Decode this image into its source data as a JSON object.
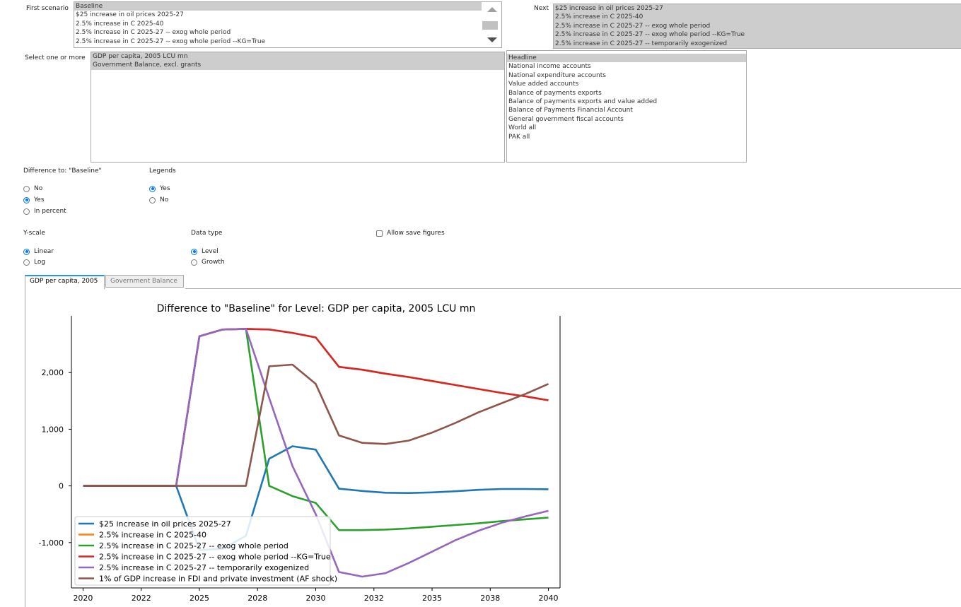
{
  "first_scenario": {
    "label": "First scenario",
    "options": [
      "Baseline",
      "$25 increase in oil prices 2025-27",
      "2.5% increase in C 2025-40",
      "2.5% increase in C 2025-27 -- exog whole period",
      "2.5% increase in C 2025-27 -- exog whole period --KG=True"
    ],
    "selected": "Baseline"
  },
  "next": {
    "label": "Next",
    "options": [
      "$25 increase in oil prices 2025-27",
      "2.5% increase in C 2025-40",
      "2.5% increase in C 2025-27 -- exog whole period",
      "2.5% increase in C 2025-27 -- exog whole period --KG=True",
      "2.5% increase in C 2025-27 -- temporarily exogenized"
    ]
  },
  "variables": {
    "label": "Select one or more",
    "options": [
      "GDP per capita, 2005 LCU mn",
      "Government Balance, excl. grants"
    ]
  },
  "groups": {
    "options": [
      "Headline",
      "National income accounts",
      "National expenditure accounts",
      "Value added accounts",
      "Balance of payments exports",
      "Balance of payments exports and value added",
      "Balance of Payments Financial Account",
      "General government fiscal accounts",
      "World all",
      "PAK all"
    ],
    "selected": "Headline"
  },
  "difference": {
    "label": "Difference to: \"Baseline\"",
    "options": [
      "No",
      "Yes",
      "In percent"
    ],
    "selected": "Yes"
  },
  "legends": {
    "label": "Legends",
    "options": [
      "Yes",
      "No"
    ],
    "selected": "Yes"
  },
  "yscale": {
    "label": "Y-scale",
    "options": [
      "Linear",
      "Log"
    ],
    "selected": "Linear"
  },
  "datatype": {
    "label": "Data type",
    "options": [
      "Level",
      "Growth"
    ],
    "selected": "Level"
  },
  "allow_save": {
    "label": "Allow save figures",
    "checked": false
  },
  "tabs": [
    "GDP per capita, 2005 LCU mn",
    "Government Balance"
  ],
  "active_tab_text": "GDP per capita, 2005",
  "colors": {
    "accent": "#0075ff",
    "tab_accent": "#2196f3",
    "selected_bg": "#cdcdcd"
  },
  "chart_data": {
    "type": "line",
    "title": "Difference to \"Baseline\" for Level: GDP per capita, 2005 LCU mn",
    "xlabel": "",
    "ylabel": "",
    "x_tick_labels": [
      "2020",
      "2022",
      "2025",
      "2028",
      "2030",
      "2032",
      "2035",
      "2038",
      "2040"
    ],
    "y_tick_labels": [
      "-1,000",
      "0",
      "1,000",
      "2,000"
    ],
    "y_ticks": [
      -1000,
      0,
      1000,
      2000
    ],
    "xlim": [
      2019.5,
      2040.5
    ],
    "ylim": [
      -1800,
      3000
    ],
    "grid": false,
    "legend_position": "lower-left",
    "x": [
      2020,
      2021,
      2022,
      2023,
      2024,
      2025,
      2026,
      2027,
      2028,
      2029,
      2030,
      2031,
      2032,
      2033,
      2034,
      2035,
      2036,
      2037,
      2038,
      2039,
      2040
    ],
    "series": [
      {
        "name": "$25 increase in oil prices 2025-27",
        "color": "#1f77b4",
        "values": [
          0,
          0,
          0,
          0,
          0,
          -1130,
          -1110,
          -880,
          480,
          700,
          640,
          -50,
          -90,
          -120,
          -125,
          -115,
          -95,
          -70,
          -55,
          -55,
          -60
        ]
      },
      {
        "name": "2.5% increase in C 2025-40",
        "color": "#ff7f0e",
        "values": [
          0,
          0,
          0,
          0,
          0,
          2640,
          2760,
          2770,
          2760,
          2700,
          2620,
          2100,
          2050,
          1980,
          1920,
          1850,
          1780,
          1710,
          1640,
          1580,
          1510
        ]
      },
      {
        "name": "2.5% increase in C 2025-27 -- exog whole period",
        "color": "#2ca02c",
        "values": [
          0,
          0,
          0,
          0,
          0,
          2640,
          2760,
          2770,
          0,
          -180,
          -300,
          -780,
          -780,
          -770,
          -750,
          -720,
          -690,
          -660,
          -620,
          -590,
          -560
        ]
      },
      {
        "name": "2.5% increase in C 2025-27 -- exog whole period --KG=True",
        "color": "#d62728",
        "values": [
          0,
          0,
          0,
          0,
          0,
          2640,
          2760,
          2770,
          2760,
          2700,
          2620,
          2100,
          2050,
          1980,
          1920,
          1850,
          1780,
          1710,
          1640,
          1580,
          1510
        ]
      },
      {
        "name": "2.5% increase in C 2025-27 -- temporarily exogenized",
        "color": "#9467bd",
        "values": [
          0,
          0,
          0,
          0,
          0,
          2640,
          2760,
          2770,
          1550,
          350,
          -500,
          -1520,
          -1600,
          -1540,
          -1360,
          -1160,
          -960,
          -790,
          -650,
          -540,
          -440
        ]
      },
      {
        "name": "1% of GDP increase in FDI and private investment (AF shock)",
        "color": "#8c564b",
        "values": [
          0,
          0,
          0,
          0,
          0,
          0,
          0,
          0,
          2110,
          2140,
          1800,
          890,
          760,
          740,
          800,
          940,
          1110,
          1300,
          1460,
          1620,
          1800
        ]
      }
    ]
  }
}
